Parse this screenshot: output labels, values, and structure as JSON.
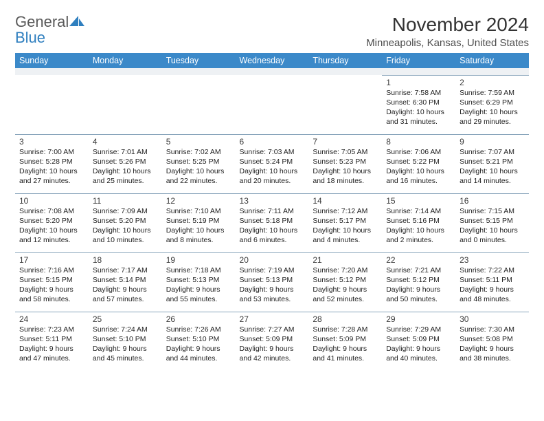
{
  "brand": {
    "word1": "General",
    "word2": "Blue",
    "color1": "#5a5a5a",
    "color2": "#2f7fbf",
    "shape_color": "#2f7fbf"
  },
  "title": "November 2024",
  "location": "Minneapolis, Kansas, United States",
  "header_bg": "#3b89c9",
  "header_fg": "#ffffff",
  "spacer_bg": "#eef1f4",
  "border_color": "#88a4bb",
  "weekdays": [
    "Sunday",
    "Monday",
    "Tuesday",
    "Wednesday",
    "Thursday",
    "Friday",
    "Saturday"
  ],
  "grid": [
    [
      null,
      null,
      null,
      null,
      null,
      {
        "n": "1",
        "sr": "7:58 AM",
        "ss": "6:30 PM",
        "dl": "10 hours and 31 minutes."
      },
      {
        "n": "2",
        "sr": "7:59 AM",
        "ss": "6:29 PM",
        "dl": "10 hours and 29 minutes."
      }
    ],
    [
      {
        "n": "3",
        "sr": "7:00 AM",
        "ss": "5:28 PM",
        "dl": "10 hours and 27 minutes."
      },
      {
        "n": "4",
        "sr": "7:01 AM",
        "ss": "5:26 PM",
        "dl": "10 hours and 25 minutes."
      },
      {
        "n": "5",
        "sr": "7:02 AM",
        "ss": "5:25 PM",
        "dl": "10 hours and 22 minutes."
      },
      {
        "n": "6",
        "sr": "7:03 AM",
        "ss": "5:24 PM",
        "dl": "10 hours and 20 minutes."
      },
      {
        "n": "7",
        "sr": "7:05 AM",
        "ss": "5:23 PM",
        "dl": "10 hours and 18 minutes."
      },
      {
        "n": "8",
        "sr": "7:06 AM",
        "ss": "5:22 PM",
        "dl": "10 hours and 16 minutes."
      },
      {
        "n": "9",
        "sr": "7:07 AM",
        "ss": "5:21 PM",
        "dl": "10 hours and 14 minutes."
      }
    ],
    [
      {
        "n": "10",
        "sr": "7:08 AM",
        "ss": "5:20 PM",
        "dl": "10 hours and 12 minutes."
      },
      {
        "n": "11",
        "sr": "7:09 AM",
        "ss": "5:20 PM",
        "dl": "10 hours and 10 minutes."
      },
      {
        "n": "12",
        "sr": "7:10 AM",
        "ss": "5:19 PM",
        "dl": "10 hours and 8 minutes."
      },
      {
        "n": "13",
        "sr": "7:11 AM",
        "ss": "5:18 PM",
        "dl": "10 hours and 6 minutes."
      },
      {
        "n": "14",
        "sr": "7:12 AM",
        "ss": "5:17 PM",
        "dl": "10 hours and 4 minutes."
      },
      {
        "n": "15",
        "sr": "7:14 AM",
        "ss": "5:16 PM",
        "dl": "10 hours and 2 minutes."
      },
      {
        "n": "16",
        "sr": "7:15 AM",
        "ss": "5:15 PM",
        "dl": "10 hours and 0 minutes."
      }
    ],
    [
      {
        "n": "17",
        "sr": "7:16 AM",
        "ss": "5:15 PM",
        "dl": "9 hours and 58 minutes."
      },
      {
        "n": "18",
        "sr": "7:17 AM",
        "ss": "5:14 PM",
        "dl": "9 hours and 57 minutes."
      },
      {
        "n": "19",
        "sr": "7:18 AM",
        "ss": "5:13 PM",
        "dl": "9 hours and 55 minutes."
      },
      {
        "n": "20",
        "sr": "7:19 AM",
        "ss": "5:13 PM",
        "dl": "9 hours and 53 minutes."
      },
      {
        "n": "21",
        "sr": "7:20 AM",
        "ss": "5:12 PM",
        "dl": "9 hours and 52 minutes."
      },
      {
        "n": "22",
        "sr": "7:21 AM",
        "ss": "5:12 PM",
        "dl": "9 hours and 50 minutes."
      },
      {
        "n": "23",
        "sr": "7:22 AM",
        "ss": "5:11 PM",
        "dl": "9 hours and 48 minutes."
      }
    ],
    [
      {
        "n": "24",
        "sr": "7:23 AM",
        "ss": "5:11 PM",
        "dl": "9 hours and 47 minutes."
      },
      {
        "n": "25",
        "sr": "7:24 AM",
        "ss": "5:10 PM",
        "dl": "9 hours and 45 minutes."
      },
      {
        "n": "26",
        "sr": "7:26 AM",
        "ss": "5:10 PM",
        "dl": "9 hours and 44 minutes."
      },
      {
        "n": "27",
        "sr": "7:27 AM",
        "ss": "5:09 PM",
        "dl": "9 hours and 42 minutes."
      },
      {
        "n": "28",
        "sr": "7:28 AM",
        "ss": "5:09 PM",
        "dl": "9 hours and 41 minutes."
      },
      {
        "n": "29",
        "sr": "7:29 AM",
        "ss": "5:09 PM",
        "dl": "9 hours and 40 minutes."
      },
      {
        "n": "30",
        "sr": "7:30 AM",
        "ss": "5:08 PM",
        "dl": "9 hours and 38 minutes."
      }
    ]
  ],
  "labels": {
    "sunrise": "Sunrise: ",
    "sunset": "Sunset: ",
    "daylight": "Daylight: "
  }
}
